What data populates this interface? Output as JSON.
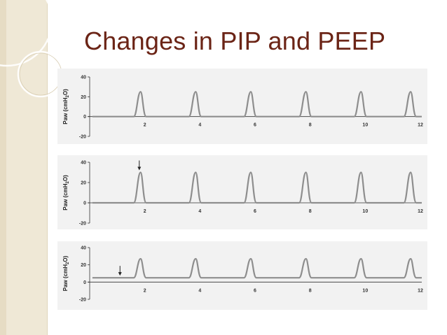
{
  "slide": {
    "title": "Changes in PIP and PEEP"
  },
  "colors": {
    "title": "#6b2416",
    "baseline": "#9a9a9a",
    "waveform": "#8e8e8e",
    "axis": "#333333",
    "panel": "#f2f2f2"
  },
  "chart_data": [
    {
      "type": "line",
      "ylabel": "Paw (cmH2O)",
      "xlim": [
        0,
        12
      ],
      "ylim": [
        -20,
        40
      ],
      "yticks": [
        40,
        20,
        0,
        -20
      ],
      "xticks": [
        2,
        4,
        6,
        8,
        10,
        12
      ],
      "peep": 0,
      "pip": 25,
      "breath_starts": [
        1.6,
        3.6,
        5.6,
        7.6,
        9.6,
        11.4
      ],
      "annotation": null
    },
    {
      "type": "line",
      "ylabel": "Paw (cmH2O)",
      "xlim": [
        0,
        12
      ],
      "ylim": [
        -20,
        40
      ],
      "yticks": [
        40,
        20,
        0,
        -20
      ],
      "xticks": [
        2,
        4,
        6,
        8,
        10,
        12
      ],
      "peep": 0,
      "pip": 30,
      "breath_starts": [
        1.6,
        3.6,
        5.6,
        7.6,
        9.6,
        11.4
      ],
      "annotation": {
        "type": "arrow",
        "x": 1.8,
        "y": 30
      }
    },
    {
      "type": "line",
      "ylabel": "Paw (cmH2O)",
      "xlim": [
        0,
        12
      ],
      "ylim": [
        -20,
        40
      ],
      "yticks": [
        40,
        20,
        0,
        -20
      ],
      "xticks": [
        2,
        4,
        6,
        8,
        10,
        12
      ],
      "peep": 5,
      "pip": 27,
      "breath_starts": [
        1.6,
        3.6,
        5.6,
        7.6,
        9.6,
        11.4
      ],
      "annotation": {
        "type": "arrow",
        "x": 1.1,
        "y": 5
      }
    }
  ]
}
